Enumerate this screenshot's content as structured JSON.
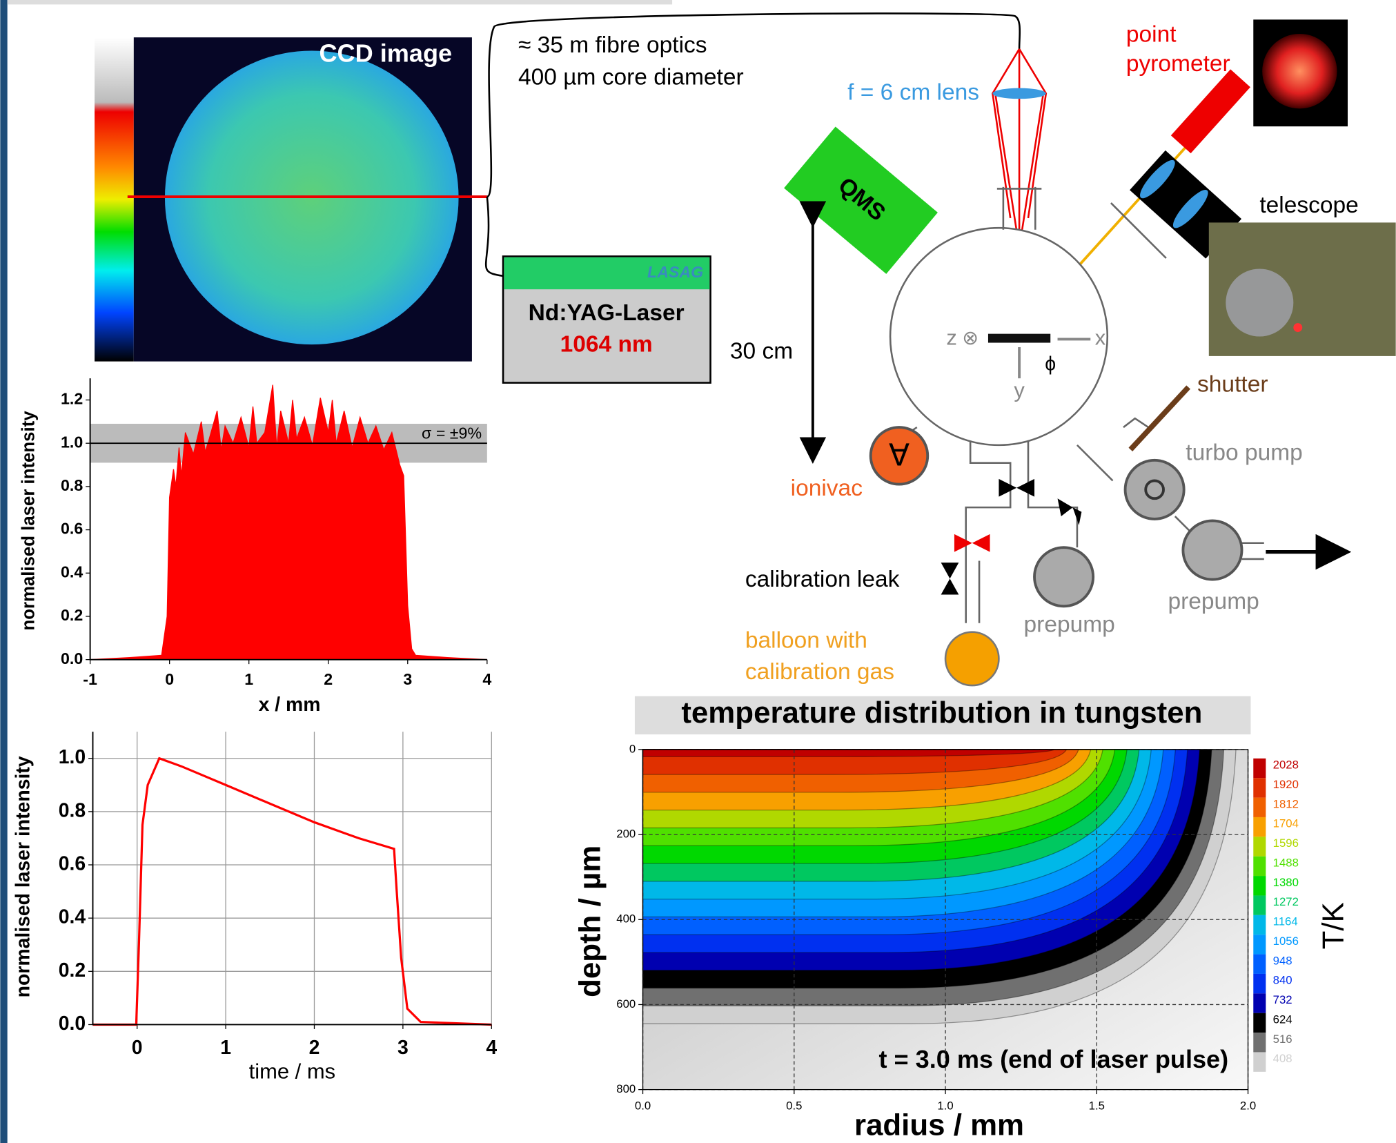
{
  "chart_data": [
    {
      "type": "area",
      "ylabel": "normalised laser intensity",
      "xlabel": "x / mm",
      "annotation": "σ = ±9%",
      "color": "#ff0000",
      "band": [
        0.91,
        1.09
      ],
      "hline": 1,
      "x": [
        -1,
        -0.5,
        -0.1,
        -0.03,
        0,
        0.05,
        0.08,
        0.12,
        0.15,
        0.2,
        0.3,
        0.4,
        0.45,
        0.5,
        0.6,
        0.65,
        0.7,
        0.8,
        0.9,
        1.0,
        1.05,
        1.1,
        1.2,
        1.3,
        1.35,
        1.4,
        1.5,
        1.55,
        1.6,
        1.7,
        1.8,
        1.9,
        2.0,
        2.05,
        2.1,
        2.2,
        2.3,
        2.4,
        2.5,
        2.6,
        2.7,
        2.8,
        2.9,
        2.95,
        3.0,
        3.05,
        3.1,
        3.5,
        4
      ],
      "y": [
        0,
        0.01,
        0.02,
        0.2,
        0.75,
        0.88,
        0.8,
        0.98,
        0.85,
        1.05,
        0.95,
        1.1,
        0.96,
        1.02,
        1.15,
        0.97,
        1.08,
        1.0,
        1.12,
        0.98,
        1.17,
        1.0,
        1.05,
        1.27,
        0.98,
        1.15,
        1.0,
        1.2,
        1.02,
        1.12,
        0.99,
        1.21,
        1.05,
        1.2,
        1.0,
        1.15,
        0.98,
        1.12,
        1.0,
        1.08,
        0.97,
        1.05,
        0.9,
        0.85,
        0.25,
        0.05,
        0.02,
        0.01,
        0
      ],
      "xlim": [
        -1,
        4
      ],
      "xticks": [
        -1,
        0,
        1,
        2,
        3,
        4
      ],
      "ylim": [
        0,
        1.3
      ],
      "yticks": [
        {
          "value": 0,
          "label": "0.0"
        },
        {
          "value": 0.2,
          "label": "0.2"
        },
        {
          "value": 0.4,
          "label": "0.4"
        },
        {
          "value": 0.6,
          "label": "0.6"
        },
        {
          "value": 0.8,
          "label": "0.8"
        },
        {
          "value": 1,
          "label": "1.0"
        },
        {
          "value": 1.2,
          "label": "1.2"
        }
      ],
      "grid": false
    },
    {
      "type": "line",
      "ylabel": "normalised laser intensity",
      "xlabel": "time / ms",
      "color": "#ff0000",
      "x": [
        -0.5,
        -0.01,
        0.02,
        0.06,
        0.12,
        0.25,
        0.5,
        1,
        1.5,
        2,
        2.5,
        2.9,
        2.93,
        2.98,
        3.05,
        3.2,
        4
      ],
      "y": [
        0,
        0,
        0.3,
        0.75,
        0.9,
        1.0,
        0.97,
        0.9,
        0.83,
        0.76,
        0.7,
        0.66,
        0.5,
        0.25,
        0.06,
        0.01,
        0
      ],
      "xlim": [
        -0.5,
        4
      ],
      "xticks": [
        0,
        1,
        2,
        3,
        4
      ],
      "ylim": [
        0,
        1.1
      ],
      "yticks": [
        {
          "value": 0,
          "label": "0.0"
        },
        {
          "value": 0.2,
          "label": "0.2"
        },
        {
          "value": 0.4,
          "label": "0.4"
        },
        {
          "value": 0.6,
          "label": "0.6"
        },
        {
          "value": 0.8,
          "label": "0.8"
        },
        {
          "value": 1,
          "label": "1.0"
        }
      ],
      "grid": true
    },
    {
      "type": "contour",
      "title": "temperature distribution in tungsten",
      "xlabel": "radius / mm",
      "ylabel": "depth / µm",
      "colorbar_label": "T/K",
      "annotation": "t = 3.0 ms (end of laser pulse)",
      "xlim": [
        0,
        2
      ],
      "xticks": [
        {
          "value": 0,
          "label": "0.0"
        },
        {
          "value": 0.5,
          "label": "0.5"
        },
        {
          "value": 1,
          "label": "1.0"
        },
        {
          "value": 1.5,
          "label": "1.5"
        },
        {
          "value": 2,
          "label": "2.0"
        }
      ],
      "ylim": [
        800,
        0
      ],
      "yticks": [
        0,
        200,
        400,
        600,
        800
      ],
      "grid": true,
      "levels": [
        2028,
        1920,
        1812,
        1704,
        1596,
        1488,
        1380,
        1272,
        1164,
        1056,
        948,
        840,
        732,
        624,
        516,
        408
      ],
      "colors": [
        "#c00000",
        "#e03000",
        "#f06000",
        "#f8a000",
        "#b0d800",
        "#50e000",
        "#00d800",
        "#00c860",
        "#00b8e8",
        "#0098ff",
        "#0060ff",
        "#0030f0",
        "#0000b0",
        "#000000",
        "#707070",
        "#d0d0d0"
      ]
    }
  ],
  "diagram": {
    "ccd": "CCD image",
    "fibre": [
      "≈ 35 m fibre optics",
      "400 µm core diameter"
    ],
    "laser_brand": "LASAG",
    "laser": "Nd:YAG-Laser",
    "wavelength": "1064 nm",
    "lens": "f = 6 cm lens",
    "pyrometer": [
      "point",
      "pyrometer"
    ],
    "qms": "QMS",
    "telescope": "telescope",
    "distance": "30 cm",
    "axes": {
      "z": "z",
      "x": "x",
      "y": "y",
      "phi": "ϕ"
    },
    "shutter": "shutter",
    "turbo": "turbo pump",
    "ionivac": "ionivac",
    "ionivac_symbol": "∀",
    "leak": "calibration leak",
    "prepump": [
      "prepump",
      "prepump"
    ],
    "balloon": [
      "balloon with",
      "calibration gas"
    ]
  }
}
